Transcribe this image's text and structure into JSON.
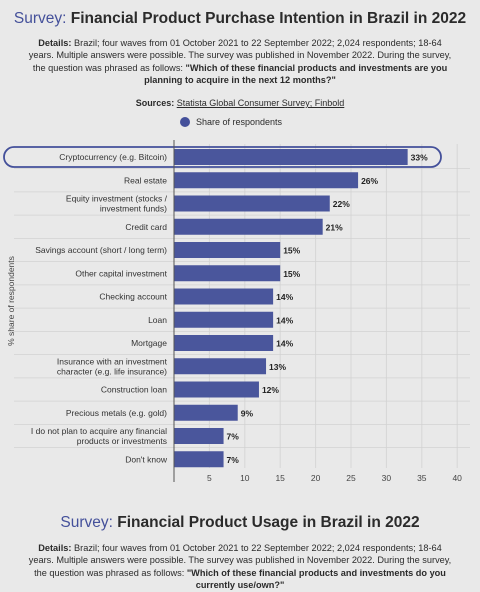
{
  "header": {
    "title_prefix": "Survey:",
    "title_main": "Financial Product Purchase Intention in Brazil in 2022",
    "details_label": "Details:",
    "details_text": "Brazil; four waves from 01 October 2021 to 22 September 2022; 2,024 respondents; 18-64 years. Multiple answers were possible. The survey was published in November 2022. During the survey, the question was phrased as follows:",
    "details_question": "\"Which of these financial products and investments are you planning to acquire in the next 12 months?\"",
    "sources_label": "Sources:",
    "sources_text": "Statista Global Consumer Survey; Finbold"
  },
  "legend": {
    "label": "Share of respondents",
    "color": "#44509a"
  },
  "chart_data": {
    "type": "bar",
    "orientation": "horizontal",
    "categories": [
      "Cryptocurrency (e.g. Bitcoin)",
      "Real estate",
      "Equity investment (stocks / investment funds)",
      "Credit card",
      "Savings account (short / long term)",
      "Other capital investment",
      "Checking account",
      "Loan",
      "Mortgage",
      "Insurance with an investment character (e.g. life insurance)",
      "Construction loan",
      "Precious metals (e.g. gold)",
      "I do not plan to acquire any financial products or investments",
      "Don't know"
    ],
    "category_lines": [
      [
        "Cryptocurrency (e.g. Bitcoin)"
      ],
      [
        "Real estate"
      ],
      [
        "Equity investment (stocks /",
        "investment funds)"
      ],
      [
        "Credit card"
      ],
      [
        "Savings account (short / long term)"
      ],
      [
        "Other capital investment"
      ],
      [
        "Checking account"
      ],
      [
        "Loan"
      ],
      [
        "Mortgage"
      ],
      [
        "Insurance with an investment",
        "character (e.g. life insurance)"
      ],
      [
        "Construction loan"
      ],
      [
        "Precious metals (e.g. gold)"
      ],
      [
        "I do not plan to acquire any financial",
        "products or investments"
      ],
      [
        "Don't know"
      ]
    ],
    "series": [
      {
        "name": "Share of respondents",
        "values": [
          33,
          26,
          22,
          21,
          15,
          15,
          14,
          14,
          14,
          13,
          12,
          9,
          7,
          7
        ]
      }
    ],
    "value_labels": [
      "33%",
      "26%",
      "22%",
      "21%",
      "15%",
      "15%",
      "14%",
      "14%",
      "14%",
      "13%",
      "12%",
      "9%",
      "7%",
      "7%"
    ],
    "ylabel": "% share of respondents",
    "xlim": [
      0,
      40
    ],
    "xticks": [
      "5",
      "10",
      "15",
      "20",
      "25",
      "30",
      "35",
      "40"
    ],
    "xtick_values": [
      5,
      10,
      15,
      20,
      25,
      30,
      35,
      40
    ],
    "highlighted_category": "Cryptocurrency (e.g. Bitcoin)",
    "grid": true,
    "bar_color": "#4a569c"
  },
  "footer": {
    "title_prefix": "Survey:",
    "title_main": "Financial Product Usage in Brazil in 2022",
    "details_label": "Details:",
    "details_text": "Brazil; four waves from 01 October 2021 to 22 September 2022; 2,024 respondents; 18-64 years. Multiple answers were possible. The survey was published in November 2022. During the survey, the question was phrased as follows:",
    "details_question": "\"Which of these financial products and investments do you currently use/own?\""
  }
}
